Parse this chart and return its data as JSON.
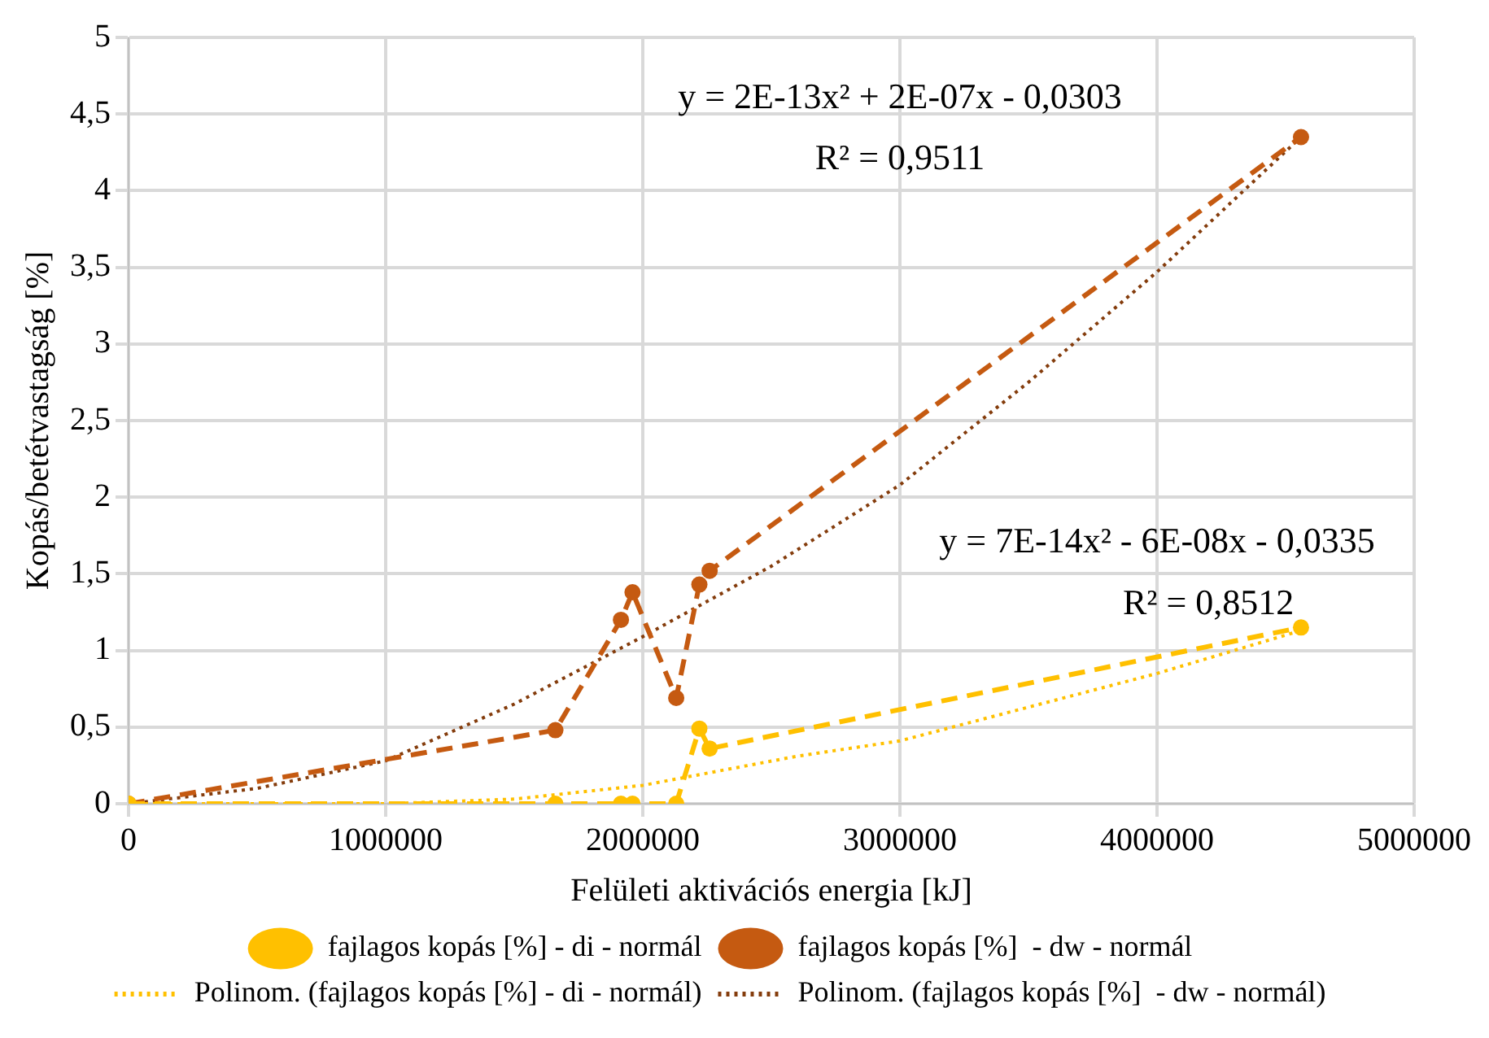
{
  "chart_data": {
    "type": "line",
    "xlabel": "Felületi aktivációs energia [kJ]",
    "ylabel": "Kopás/betétvastagság [%]",
    "xlim": [
      0,
      5000000
    ],
    "xticks": [
      0,
      1000000,
      2000000,
      3000000,
      4000000,
      5000000
    ],
    "ylim": [
      0,
      5
    ],
    "yticks": [
      0,
      {
        "value": 0.5,
        "label": "0,5"
      },
      1,
      {
        "value": 1.5,
        "label": "1,5"
      },
      2,
      {
        "value": 2.5,
        "label": "2,5"
      },
      3,
      {
        "value": 3.5,
        "label": "3,5"
      },
      4,
      {
        "value": 4.5,
        "label": "4,5"
      },
      5
    ],
    "grid": true,
    "legend": "bottom",
    "series": [
      {
        "name": "fajlagos kopás [%] - di - normál",
        "color": "#ffc000",
        "line_style": "dashed",
        "marker": "circle",
        "x": [
          0,
          1660000,
          1915000,
          1960000,
          2130000,
          2220000,
          2260000,
          4560000
        ],
        "values": [
          0,
          0,
          0,
          0,
          0,
          0.49,
          0.36,
          1.15
        ]
      },
      {
        "name": "fajlagos kopás [%]  - dw - normál",
        "color": "#c55a11",
        "line_style": "dashed",
        "marker": "circle",
        "x": [
          0,
          1660000,
          1915000,
          1960000,
          2130000,
          2220000,
          2260000,
          4560000
        ],
        "values": [
          0,
          0.48,
          1.2,
          1.38,
          0.69,
          1.43,
          1.52,
          4.35
        ]
      },
      {
        "name": "Polinom. (fajlagos kopás [%] - di - normál)",
        "color": "#ffc000",
        "line_style": "dotted",
        "marker": "none",
        "x": [
          0,
          1000000,
          1500000,
          2000000,
          2600000,
          3000000,
          4000000,
          4560000
        ],
        "values": [
          0,
          0,
          0.03,
          0.12,
          0.31,
          0.41,
          0.85,
          1.13
        ]
      },
      {
        "name": "Polinom. (fajlagos kopás [%]  - dw - normál)",
        "color": "#843c0c",
        "line_style": "dotted",
        "marker": "none",
        "x": [
          0,
          500000,
          1000000,
          1500000,
          2000000,
          2500000,
          3000000,
          3500000,
          4000000,
          4560000
        ],
        "values": [
          0,
          0.1,
          0.28,
          0.65,
          1.09,
          1.55,
          2.08,
          2.75,
          3.47,
          4.35
        ]
      }
    ],
    "annotations": [
      "y = 2E-13x² + 2E-07x - 0,0303",
      "R² = 0,9511",
      "y = 7E-14x² - 6E-08x - 0,0335",
      "R² = 0,8512"
    ]
  }
}
